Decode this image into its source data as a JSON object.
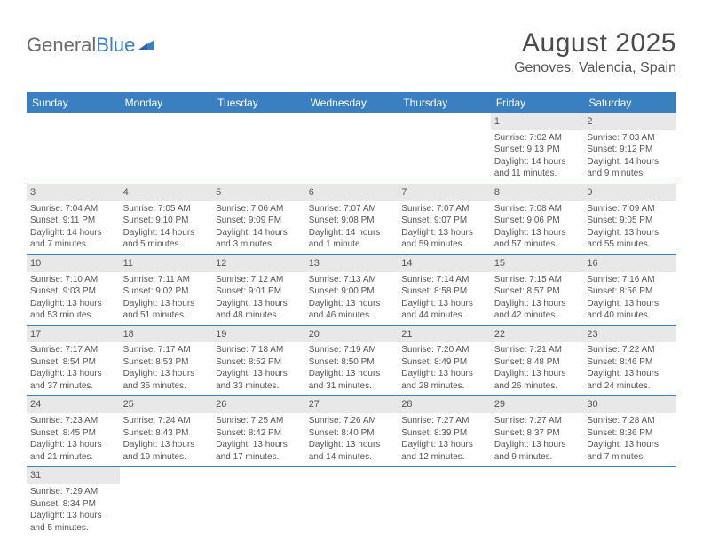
{
  "logo": {
    "part1": "General",
    "part2": "Blue"
  },
  "title": "August 2025",
  "location": "Genoves, Valencia, Spain",
  "headers": [
    "Sunday",
    "Monday",
    "Tuesday",
    "Wednesday",
    "Thursday",
    "Friday",
    "Saturday"
  ],
  "colors": {
    "header_bg": "#3a7fbf",
    "header_fg": "#ffffff",
    "daynum_bg": "#e8e8e8",
    "border": "#3a7fbf",
    "text": "#555555",
    "logo_gray": "#6b6b6b",
    "logo_blue": "#3a7fbf"
  },
  "weeks": [
    [
      null,
      null,
      null,
      null,
      null,
      {
        "n": "1",
        "sr": "Sunrise: 7:02 AM",
        "ss": "Sunset: 9:13 PM",
        "d1": "Daylight: 14 hours",
        "d2": "and 11 minutes."
      },
      {
        "n": "2",
        "sr": "Sunrise: 7:03 AM",
        "ss": "Sunset: 9:12 PM",
        "d1": "Daylight: 14 hours",
        "d2": "and 9 minutes."
      }
    ],
    [
      {
        "n": "3",
        "sr": "Sunrise: 7:04 AM",
        "ss": "Sunset: 9:11 PM",
        "d1": "Daylight: 14 hours",
        "d2": "and 7 minutes."
      },
      {
        "n": "4",
        "sr": "Sunrise: 7:05 AM",
        "ss": "Sunset: 9:10 PM",
        "d1": "Daylight: 14 hours",
        "d2": "and 5 minutes."
      },
      {
        "n": "5",
        "sr": "Sunrise: 7:06 AM",
        "ss": "Sunset: 9:09 PM",
        "d1": "Daylight: 14 hours",
        "d2": "and 3 minutes."
      },
      {
        "n": "6",
        "sr": "Sunrise: 7:07 AM",
        "ss": "Sunset: 9:08 PM",
        "d1": "Daylight: 14 hours",
        "d2": "and 1 minute."
      },
      {
        "n": "7",
        "sr": "Sunrise: 7:07 AM",
        "ss": "Sunset: 9:07 PM",
        "d1": "Daylight: 13 hours",
        "d2": "and 59 minutes."
      },
      {
        "n": "8",
        "sr": "Sunrise: 7:08 AM",
        "ss": "Sunset: 9:06 PM",
        "d1": "Daylight: 13 hours",
        "d2": "and 57 minutes."
      },
      {
        "n": "9",
        "sr": "Sunrise: 7:09 AM",
        "ss": "Sunset: 9:05 PM",
        "d1": "Daylight: 13 hours",
        "d2": "and 55 minutes."
      }
    ],
    [
      {
        "n": "10",
        "sr": "Sunrise: 7:10 AM",
        "ss": "Sunset: 9:03 PM",
        "d1": "Daylight: 13 hours",
        "d2": "and 53 minutes."
      },
      {
        "n": "11",
        "sr": "Sunrise: 7:11 AM",
        "ss": "Sunset: 9:02 PM",
        "d1": "Daylight: 13 hours",
        "d2": "and 51 minutes."
      },
      {
        "n": "12",
        "sr": "Sunrise: 7:12 AM",
        "ss": "Sunset: 9:01 PM",
        "d1": "Daylight: 13 hours",
        "d2": "and 48 minutes."
      },
      {
        "n": "13",
        "sr": "Sunrise: 7:13 AM",
        "ss": "Sunset: 9:00 PM",
        "d1": "Daylight: 13 hours",
        "d2": "and 46 minutes."
      },
      {
        "n": "14",
        "sr": "Sunrise: 7:14 AM",
        "ss": "Sunset: 8:58 PM",
        "d1": "Daylight: 13 hours",
        "d2": "and 44 minutes."
      },
      {
        "n": "15",
        "sr": "Sunrise: 7:15 AM",
        "ss": "Sunset: 8:57 PM",
        "d1": "Daylight: 13 hours",
        "d2": "and 42 minutes."
      },
      {
        "n": "16",
        "sr": "Sunrise: 7:16 AM",
        "ss": "Sunset: 8:56 PM",
        "d1": "Daylight: 13 hours",
        "d2": "and 40 minutes."
      }
    ],
    [
      {
        "n": "17",
        "sr": "Sunrise: 7:17 AM",
        "ss": "Sunset: 8:54 PM",
        "d1": "Daylight: 13 hours",
        "d2": "and 37 minutes."
      },
      {
        "n": "18",
        "sr": "Sunrise: 7:17 AM",
        "ss": "Sunset: 8:53 PM",
        "d1": "Daylight: 13 hours",
        "d2": "and 35 minutes."
      },
      {
        "n": "19",
        "sr": "Sunrise: 7:18 AM",
        "ss": "Sunset: 8:52 PM",
        "d1": "Daylight: 13 hours",
        "d2": "and 33 minutes."
      },
      {
        "n": "20",
        "sr": "Sunrise: 7:19 AM",
        "ss": "Sunset: 8:50 PM",
        "d1": "Daylight: 13 hours",
        "d2": "and 31 minutes."
      },
      {
        "n": "21",
        "sr": "Sunrise: 7:20 AM",
        "ss": "Sunset: 8:49 PM",
        "d1": "Daylight: 13 hours",
        "d2": "and 28 minutes."
      },
      {
        "n": "22",
        "sr": "Sunrise: 7:21 AM",
        "ss": "Sunset: 8:48 PM",
        "d1": "Daylight: 13 hours",
        "d2": "and 26 minutes."
      },
      {
        "n": "23",
        "sr": "Sunrise: 7:22 AM",
        "ss": "Sunset: 8:46 PM",
        "d1": "Daylight: 13 hours",
        "d2": "and 24 minutes."
      }
    ],
    [
      {
        "n": "24",
        "sr": "Sunrise: 7:23 AM",
        "ss": "Sunset: 8:45 PM",
        "d1": "Daylight: 13 hours",
        "d2": "and 21 minutes."
      },
      {
        "n": "25",
        "sr": "Sunrise: 7:24 AM",
        "ss": "Sunset: 8:43 PM",
        "d1": "Daylight: 13 hours",
        "d2": "and 19 minutes."
      },
      {
        "n": "26",
        "sr": "Sunrise: 7:25 AM",
        "ss": "Sunset: 8:42 PM",
        "d1": "Daylight: 13 hours",
        "d2": "and 17 minutes."
      },
      {
        "n": "27",
        "sr": "Sunrise: 7:26 AM",
        "ss": "Sunset: 8:40 PM",
        "d1": "Daylight: 13 hours",
        "d2": "and 14 minutes."
      },
      {
        "n": "28",
        "sr": "Sunrise: 7:27 AM",
        "ss": "Sunset: 8:39 PM",
        "d1": "Daylight: 13 hours",
        "d2": "and 12 minutes."
      },
      {
        "n": "29",
        "sr": "Sunrise: 7:27 AM",
        "ss": "Sunset: 8:37 PM",
        "d1": "Daylight: 13 hours",
        "d2": "and 9 minutes."
      },
      {
        "n": "30",
        "sr": "Sunrise: 7:28 AM",
        "ss": "Sunset: 8:36 PM",
        "d1": "Daylight: 13 hours",
        "d2": "and 7 minutes."
      }
    ],
    [
      {
        "n": "31",
        "sr": "Sunrise: 7:29 AM",
        "ss": "Sunset: 8:34 PM",
        "d1": "Daylight: 13 hours",
        "d2": "and 5 minutes."
      },
      null,
      null,
      null,
      null,
      null,
      null
    ]
  ]
}
